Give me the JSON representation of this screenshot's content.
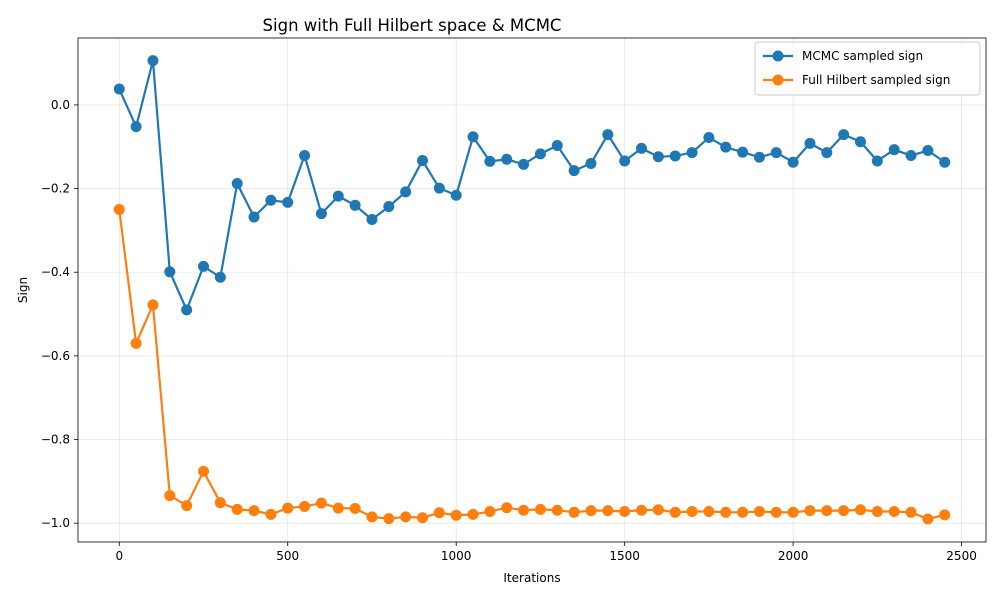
{
  "chart_data": {
    "type": "line",
    "title": "Sign with Full Hilbert space & MCMC",
    "xlabel": "Iterations",
    "ylabel": "Sign",
    "xlim": [
      -122.5,
      2572.5
    ],
    "ylim": [
      -1.045,
      0.16
    ],
    "xticks": [
      0,
      500,
      1000,
      1500,
      2000,
      2500
    ],
    "yticks": [
      0.0,
      -0.2,
      -0.4,
      -0.6,
      -0.8,
      -1.0
    ],
    "xtick_labels": [
      "0",
      "500",
      "1000",
      "1500",
      "2000",
      "2500"
    ],
    "ytick_labels": [
      "0.0",
      "−0.2",
      "−0.4",
      "−0.6",
      "−0.8",
      "−1.0"
    ],
    "grid": true,
    "legend_position": "upper right",
    "x": [
      0,
      50,
      100,
      150,
      200,
      250,
      300,
      350,
      400,
      450,
      500,
      550,
      600,
      650,
      700,
      750,
      800,
      850,
      900,
      950,
      1000,
      1050,
      1100,
      1150,
      1200,
      1250,
      1300,
      1350,
      1400,
      1450,
      1500,
      1550,
      1600,
      1650,
      1700,
      1750,
      1800,
      1850,
      1900,
      1950,
      2000,
      2050,
      2100,
      2150,
      2200,
      2250,
      2300,
      2350,
      2400,
      2450
    ],
    "series": [
      {
        "name": "MCMC sampled sign",
        "color": "#1f77b4",
        "values": [
          0.038,
          -0.052,
          0.106,
          -0.399,
          -0.49,
          -0.386,
          -0.412,
          -0.188,
          -0.268,
          -0.228,
          -0.233,
          -0.121,
          -0.26,
          -0.218,
          -0.24,
          -0.274,
          -0.243,
          -0.208,
          -0.133,
          -0.199,
          -0.216,
          -0.076,
          -0.135,
          -0.13,
          -0.142,
          -0.117,
          -0.097,
          -0.157,
          -0.14,
          -0.071,
          -0.134,
          -0.104,
          -0.124,
          -0.122,
          -0.114,
          -0.078,
          -0.101,
          -0.113,
          -0.125,
          -0.114,
          -0.137,
          -0.092,
          -0.114,
          -0.071,
          -0.088,
          -0.134,
          -0.107,
          -0.121,
          -0.109,
          -0.137
        ]
      },
      {
        "name": "Full Hilbert sampled sign",
        "color": "#ff7f0e",
        "values": [
          -0.25,
          -0.57,
          -0.478,
          -0.934,
          -0.958,
          -0.876,
          -0.951,
          -0.967,
          -0.97,
          -0.979,
          -0.964,
          -0.96,
          -0.952,
          -0.964,
          -0.965,
          -0.985,
          -0.989,
          -0.985,
          -0.987,
          -0.975,
          -0.981,
          -0.979,
          -0.972,
          -0.963,
          -0.969,
          -0.967,
          -0.969,
          -0.974,
          -0.97,
          -0.97,
          -0.972,
          -0.969,
          -0.968,
          -0.974,
          -0.972,
          -0.972,
          -0.974,
          -0.974,
          -0.972,
          -0.974,
          -0.974,
          -0.97,
          -0.97,
          -0.97,
          -0.968,
          -0.972,
          -0.972,
          -0.974,
          -0.99,
          -0.98
        ]
      }
    ]
  }
}
